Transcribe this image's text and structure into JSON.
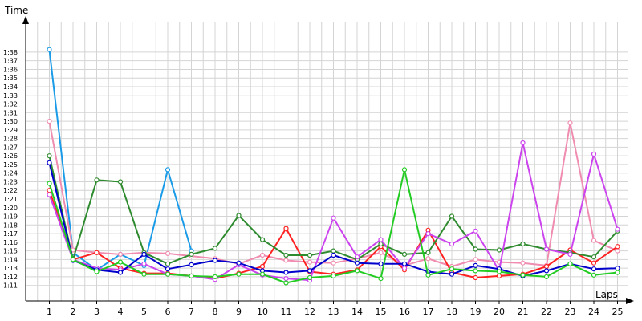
{
  "chart_data": {
    "type": "line",
    "xlabel": "Laps",
    "ylabel": "Time",
    "x": [
      1,
      2,
      3,
      4,
      5,
      6,
      7,
      8,
      9,
      10,
      11,
      12,
      13,
      14,
      15,
      16,
      17,
      18,
      19,
      20,
      21,
      22,
      23,
      24,
      25
    ],
    "xlim": [
      0,
      26
    ],
    "ylim_seconds": [
      70,
      100
    ],
    "yticks": [
      "1:11",
      "1:12",
      "1:13",
      "1:14",
      "1:15",
      "1:16",
      "1:17",
      "1:18",
      "1:19",
      "1:20",
      "1:21",
      "1:22",
      "1:23",
      "1:24",
      "1:25",
      "1:26",
      "1:27",
      "1:28",
      "1:29",
      "1:30",
      "1:31",
      "1:32",
      "1:33",
      "1:34",
      "1:35",
      "1:36",
      "1:37",
      "1:38"
    ],
    "grid": true,
    "series": [
      {
        "color": "#1a9be8",
        "values": [
          98.3,
          74.8,
          72.8,
          74.6,
          73.3,
          84.4,
          75.0,
          null,
          null,
          null,
          null,
          null,
          null,
          null,
          null,
          null,
          null,
          null,
          null,
          null,
          null,
          null,
          null,
          null,
          null
        ]
      },
      {
        "color": "#f08cb0",
        "values": [
          90.0,
          75.1,
          74.8,
          74.6,
          74.8,
          74.7,
          74.4,
          74.1,
          73.5,
          74.5,
          73.9,
          73.7,
          73.6,
          74.1,
          74.8,
          73.3,
          74.1,
          73.2,
          74.0,
          73.7,
          73.6,
          73.3,
          89.8,
          76.2,
          75.0
        ]
      },
      {
        "color": "#ff2222",
        "values": [
          82.0,
          74.0,
          74.8,
          73.0,
          72.4,
          72.4,
          72.1,
          71.8,
          72.4,
          73.2,
          77.6,
          72.6,
          72.3,
          72.8,
          75.5,
          72.8,
          77.4,
          72.5,
          71.9,
          72.1,
          72.3,
          73.2,
          75.1,
          73.6,
          75.5
        ]
      },
      {
        "color": "#2f8b2f",
        "values": [
          86.0,
          74.0,
          83.2,
          83.0,
          74.8,
          73.5,
          74.6,
          75.3,
          79.1,
          76.3,
          74.5,
          74.5,
          75.0,
          74.0,
          75.8,
          74.6,
          74.8,
          79.0,
          75.2,
          75.1,
          75.8,
          75.2,
          74.8,
          74.3,
          77.3
        ]
      },
      {
        "color": "#cc44ee",
        "values": [
          81.5,
          74.0,
          73.0,
          72.8,
          73.5,
          72.3,
          72.1,
          71.7,
          73.4,
          72.2,
          71.8,
          71.6,
          78.8,
          74.3,
          76.3,
          73.0,
          77.0,
          75.8,
          77.3,
          72.7,
          87.5,
          75.2,
          74.6,
          86.2,
          77.5
        ]
      },
      {
        "color": "#0000cc",
        "values": [
          85.2,
          73.9,
          72.8,
          72.5,
          74.6,
          72.9,
          73.4,
          73.9,
          73.6,
          72.7,
          72.5,
          72.7,
          74.5,
          73.6,
          73.5,
          73.5,
          72.6,
          72.3,
          73.3,
          72.9,
          72.1,
          72.7,
          73.5,
          72.9,
          73.0
        ]
      },
      {
        "color": "#22cc22",
        "values": [
          82.8,
          74.0,
          72.6,
          73.7,
          72.3,
          72.3,
          72.1,
          72.0,
          72.3,
          72.3,
          71.3,
          71.9,
          72.1,
          72.7,
          71.8,
          84.4,
          72.2,
          72.9,
          72.7,
          72.6,
          72.2,
          72.0,
          73.5,
          72.2,
          72.5
        ]
      }
    ]
  }
}
